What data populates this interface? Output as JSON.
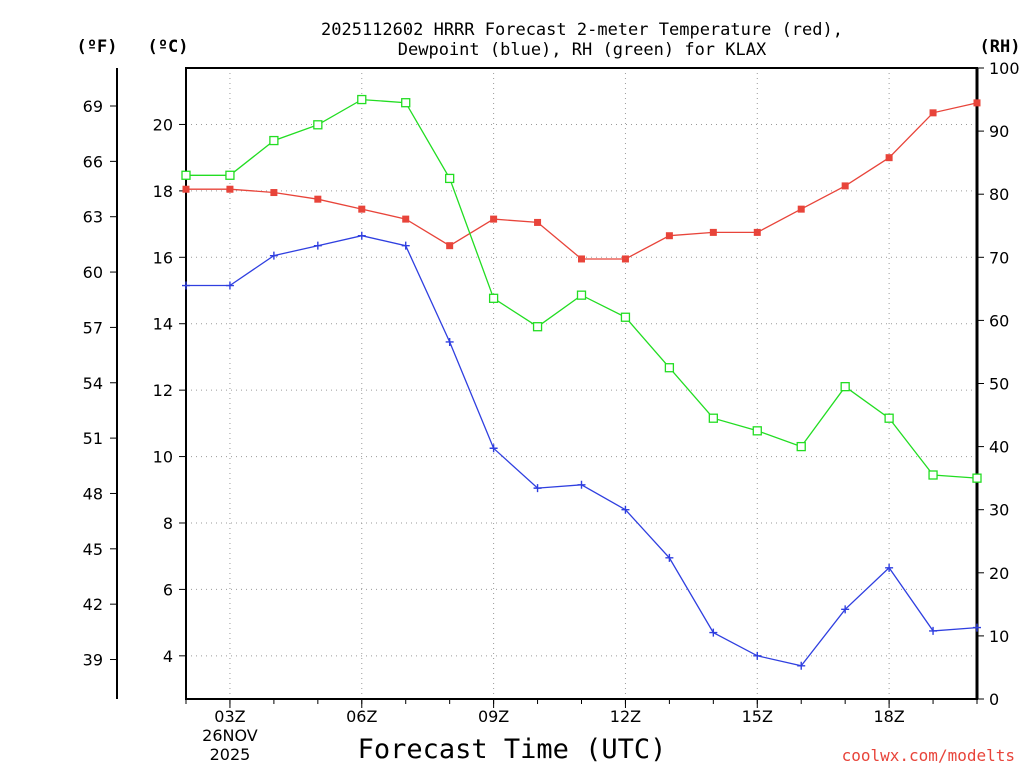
{
  "chart_data": {
    "type": "line",
    "title_line1": "2025112602 HRRR Forecast 2-meter Temperature (red),",
    "title_line2": "Dewpoint (blue), RH (green) for KLAX",
    "left_outer_unit": "(ºF)",
    "left_inner_unit": "(ºC)",
    "right_unit": "(RH)",
    "xlabel": "Forecast Time (UTC)",
    "credit": "coolwx.com/modelts",
    "x_hours": [
      2,
      3,
      4,
      5,
      6,
      7,
      8,
      9,
      10,
      11,
      12,
      13,
      14,
      15,
      16,
      17,
      18,
      19,
      20
    ],
    "xlim": [
      2,
      20
    ],
    "x_ticks": [
      {
        "hour": 3,
        "label": "03Z",
        "sub1": "26NOV",
        "sub2": "2025"
      },
      {
        "hour": 6,
        "label": "06Z"
      },
      {
        "hour": 9,
        "label": "09Z"
      },
      {
        "hour": 12,
        "label": "12Z"
      },
      {
        "hour": 15,
        "label": "15Z"
      },
      {
        "hour": 18,
        "label": "18Z"
      }
    ],
    "ylim_c": [
      2.7,
      21.7
    ],
    "y_ticks_c": [
      4,
      6,
      8,
      10,
      12,
      14,
      16,
      18,
      20
    ],
    "y_ticks_f": [
      39,
      42,
      45,
      48,
      51,
      54,
      57,
      60,
      63,
      66,
      69
    ],
    "ylim_rh": [
      0,
      100
    ],
    "y_ticks_rh": [
      0,
      10,
      20,
      30,
      40,
      50,
      60,
      70,
      80,
      90,
      100
    ],
    "series": [
      {
        "name": "Temperature",
        "axis": "C",
        "color": "#e8443a",
        "marker": "filled-square",
        "values": [
          18.05,
          18.05,
          17.95,
          17.75,
          17.45,
          17.15,
          16.35,
          17.15,
          17.05,
          15.95,
          15.95,
          16.65,
          16.75,
          16.75,
          17.45,
          18.15,
          19.0,
          20.35,
          20.65
        ]
      },
      {
        "name": "Dewpoint",
        "axis": "C",
        "color": "#2f3fe0",
        "marker": "plus",
        "values": [
          15.15,
          15.15,
          16.05,
          16.35,
          16.65,
          16.35,
          13.45,
          10.25,
          9.05,
          9.15,
          8.4,
          6.95,
          4.7,
          4.0,
          3.7,
          5.4,
          6.65,
          4.75,
          4.85
        ]
      },
      {
        "name": "RH",
        "axis": "RH",
        "color": "#22dd22",
        "marker": "open-square",
        "values": [
          83,
          83,
          88.5,
          91,
          95,
          94.5,
          82.5,
          63.5,
          59,
          64,
          60.5,
          52.5,
          44.5,
          42.5,
          40,
          49.5,
          44.5,
          35.5,
          35
        ]
      }
    ]
  }
}
